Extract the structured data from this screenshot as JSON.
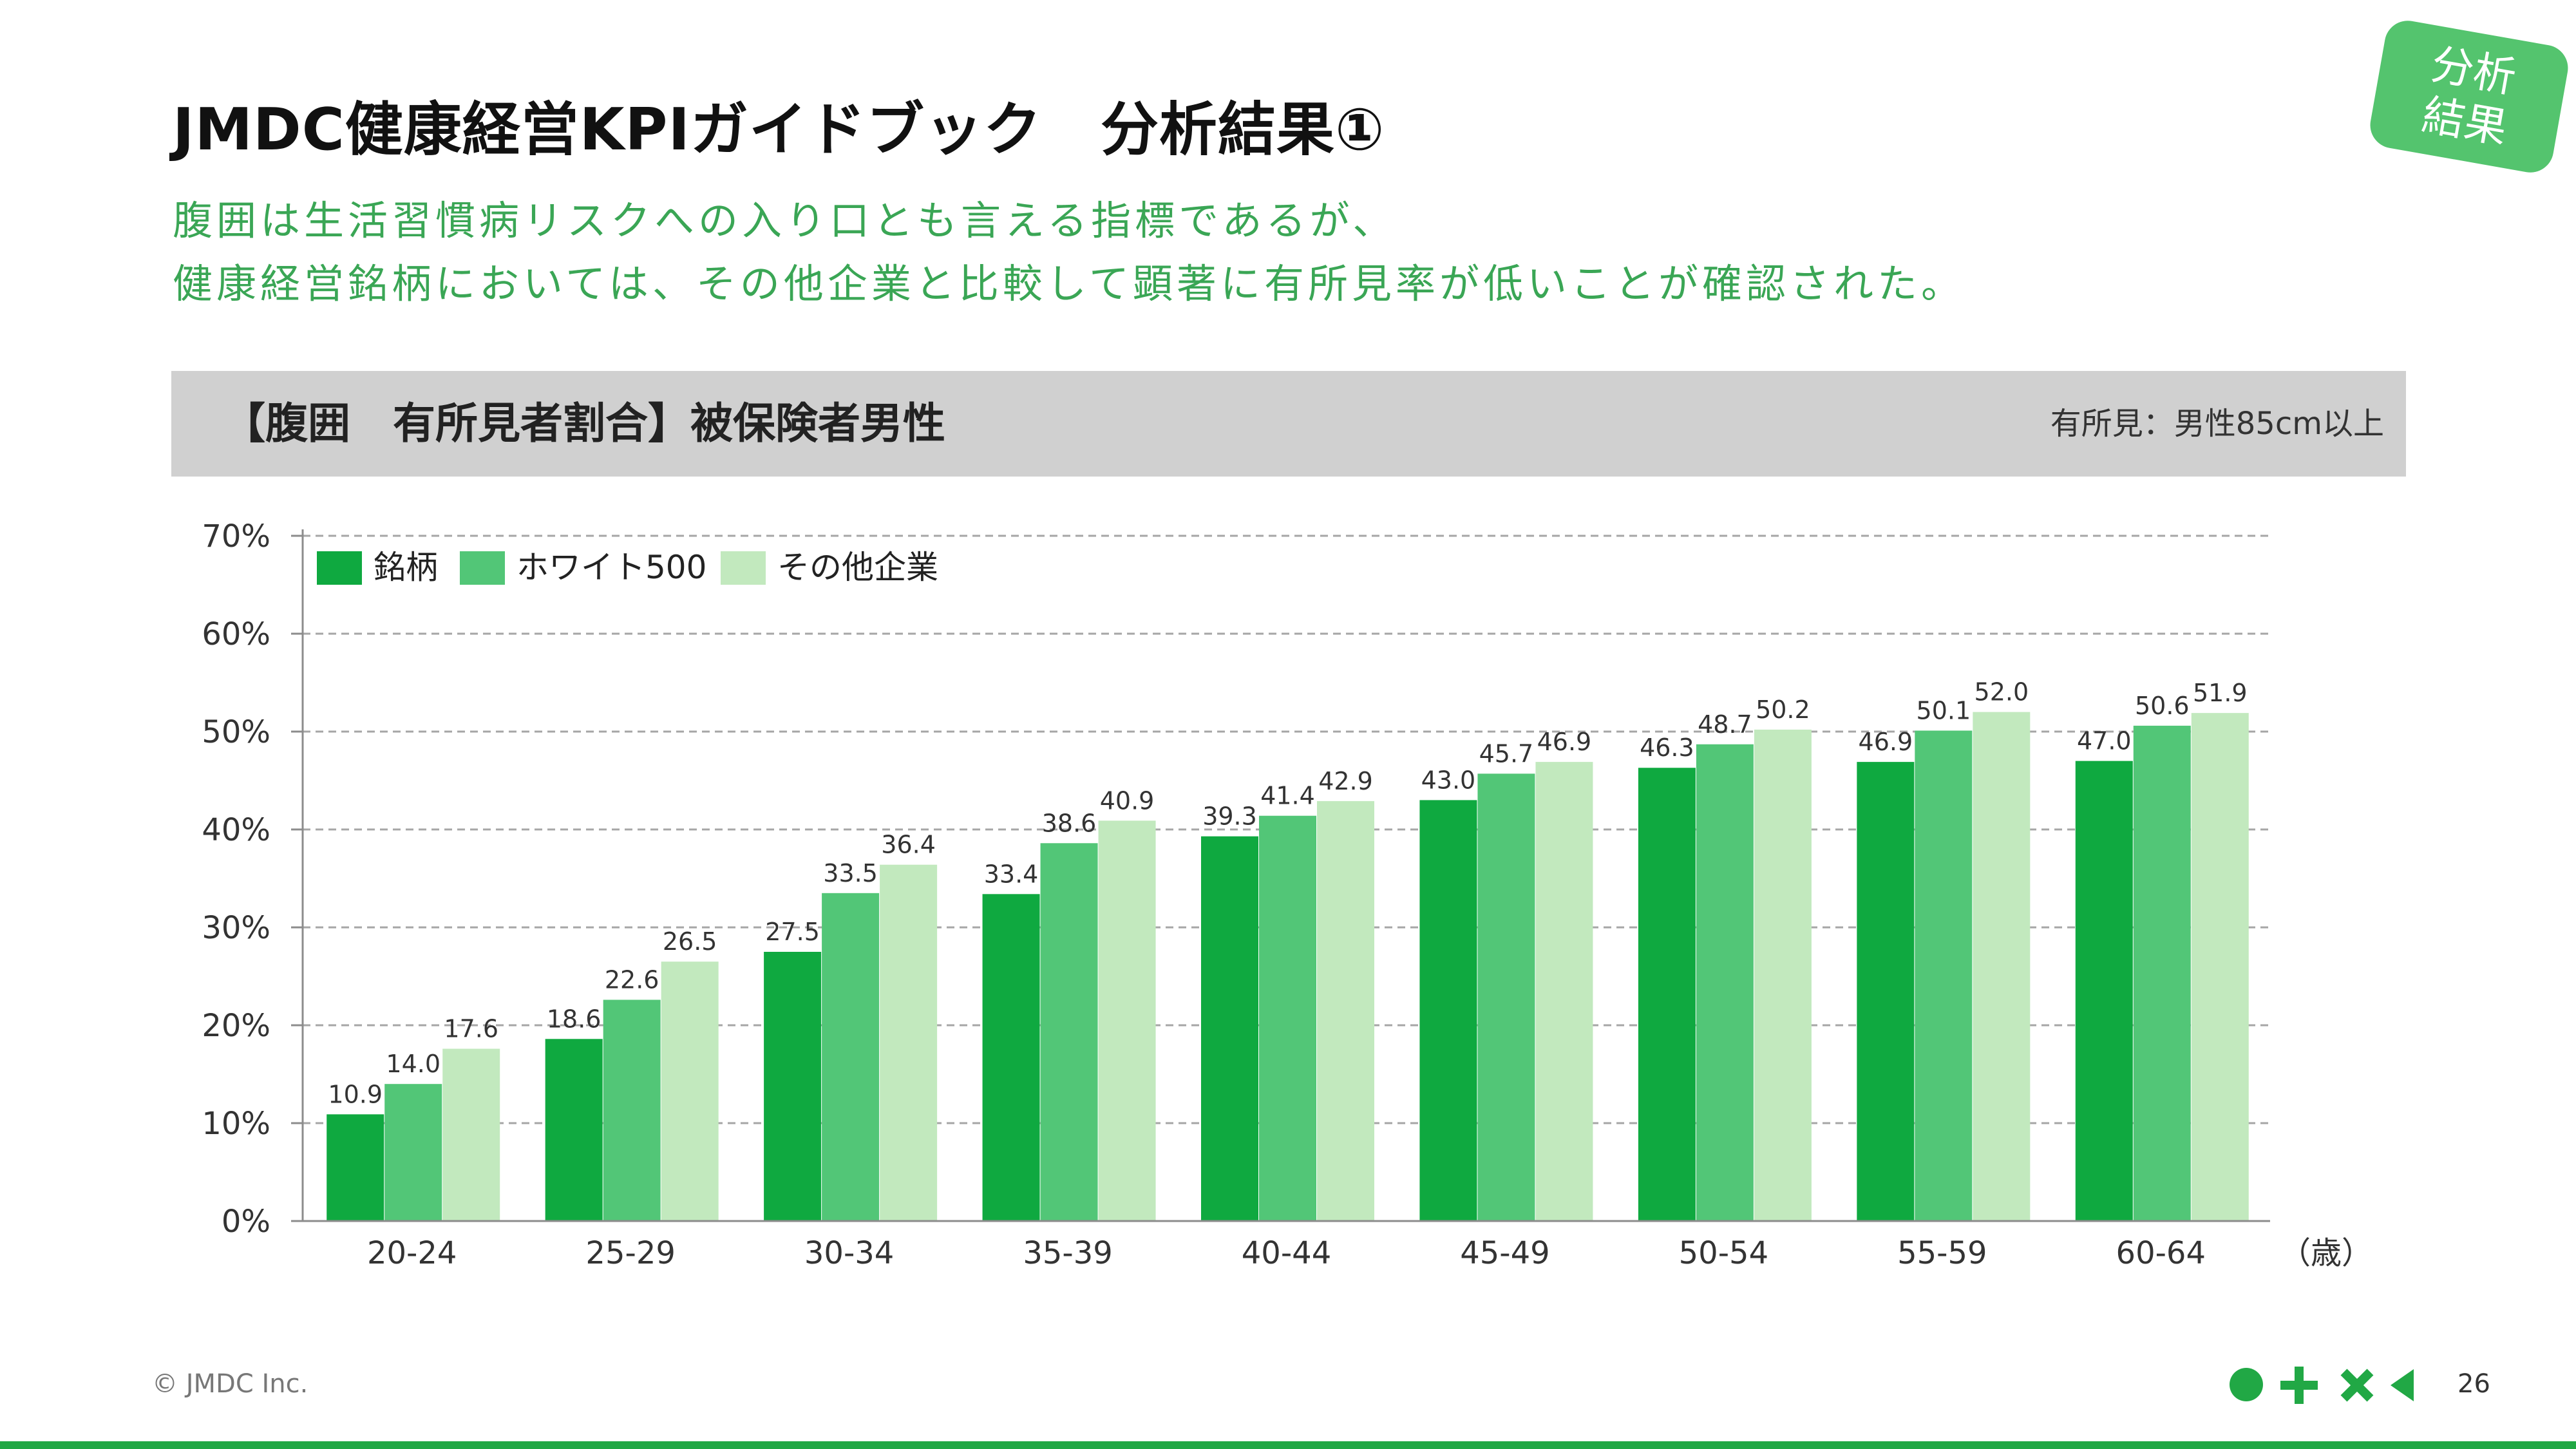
{
  "header": {
    "title": "JMDC健康経営KPIガイドブック　分析結果①",
    "lead_line1": "腹囲は生活習慣病リスクへの入り口とも言える指標であるが、",
    "lead_line2": "健康経営銘柄においては、その他企業と比較して顕著に有所見率が低いことが確認された。",
    "badge_line1": "分析",
    "badge_line2": "結果"
  },
  "banner": {
    "title": "【腹囲　有所見者割合】被保険者男性",
    "note": "有所見：男性85cm以上"
  },
  "chart_data": {
    "type": "bar",
    "categories": [
      "20-24",
      "25-29",
      "30-34",
      "35-39",
      "40-44",
      "45-49",
      "50-54",
      "55-59",
      "60-64"
    ],
    "series": [
      {
        "name": "銘柄",
        "values": [
          10.9,
          18.6,
          27.5,
          33.4,
          39.3,
          43.0,
          46.3,
          46.9,
          47.0
        ]
      },
      {
        "name": "ホワイト500",
        "values": [
          14.0,
          22.6,
          33.5,
          38.6,
          41.4,
          45.7,
          48.7,
          50.1,
          50.6
        ]
      },
      {
        "name": "その他企業",
        "values": [
          17.6,
          26.5,
          36.4,
          40.9,
          42.9,
          46.9,
          50.2,
          52.0,
          51.9
        ]
      }
    ],
    "yticks": [
      "0%",
      "10%",
      "20%",
      "30%",
      "40%",
      "50%",
      "60%",
      "70%"
    ],
    "ylim": [
      0,
      70
    ],
    "xunit": "（歳）",
    "grid": true,
    "legend_position": "top-left",
    "colors": [
      "#0fa940",
      "#52c677",
      "#c2e9be"
    ]
  },
  "footer": {
    "copyright": "© JMDC Inc.",
    "page": "26"
  },
  "theme": {
    "accent": "#21a845",
    "lead_color": "#3aa655"
  }
}
